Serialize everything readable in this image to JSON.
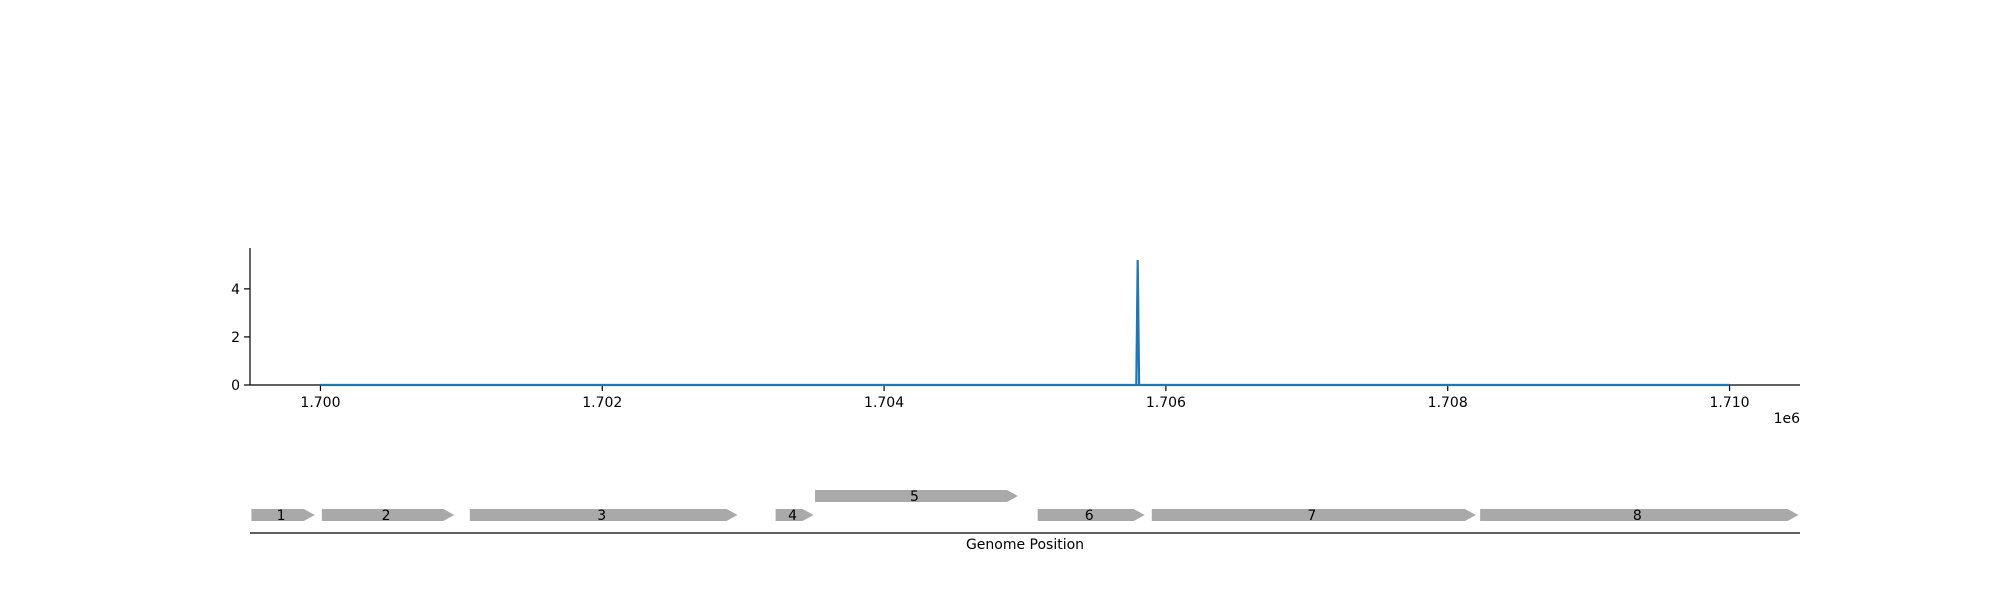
{
  "chart_data": [
    {
      "type": "line",
      "title": "",
      "xlabel": "",
      "ylabel": "",
      "x_offset_text": "1e6",
      "xlim": [
        1699500,
        1710500
      ],
      "ylim": [
        0,
        5.7
      ],
      "x_ticks": [
        1700000,
        1702000,
        1704000,
        1706000,
        1708000,
        1710000
      ],
      "x_tick_labels": [
        "1.700",
        "1.702",
        "1.704",
        "1.706",
        "1.708",
        "1.710"
      ],
      "y_ticks": [
        0,
        2,
        4
      ],
      "y_tick_labels": [
        "0",
        "2",
        "4"
      ],
      "grid": false,
      "series": [
        {
          "x": [
            1700000,
            1705790,
            1705800,
            1705810,
            1710000
          ],
          "y": [
            0,
            0,
            5.2,
            0,
            0
          ]
        }
      ]
    },
    {
      "type": "gene-track",
      "xlabel": "Genome Position",
      "xlim": [
        1699500,
        1710500
      ],
      "genes": [
        {
          "label": "1",
          "start": 1699510,
          "end": 1699960,
          "strand": "+",
          "row": 0
        },
        {
          "label": "2",
          "start": 1700010,
          "end": 1700950,
          "strand": "+",
          "row": 0
        },
        {
          "label": "3",
          "start": 1701060,
          "end": 1702960,
          "strand": "+",
          "row": 0
        },
        {
          "label": "4",
          "start": 1703230,
          "end": 1703500,
          "strand": "+",
          "row": 0
        },
        {
          "label": "5",
          "start": 1703510,
          "end": 1704950,
          "strand": "+",
          "row": 1
        },
        {
          "label": "6",
          "start": 1705090,
          "end": 1705850,
          "strand": "+",
          "row": 0
        },
        {
          "label": "7",
          "start": 1705900,
          "end": 1708200,
          "strand": "+",
          "row": 0
        },
        {
          "label": "8",
          "start": 1708230,
          "end": 1710490,
          "strand": "+",
          "row": 0
        }
      ]
    }
  ],
  "colors": {
    "line": "#1f77b4",
    "gene": "#a9a9a9",
    "axis": "#000000"
  }
}
